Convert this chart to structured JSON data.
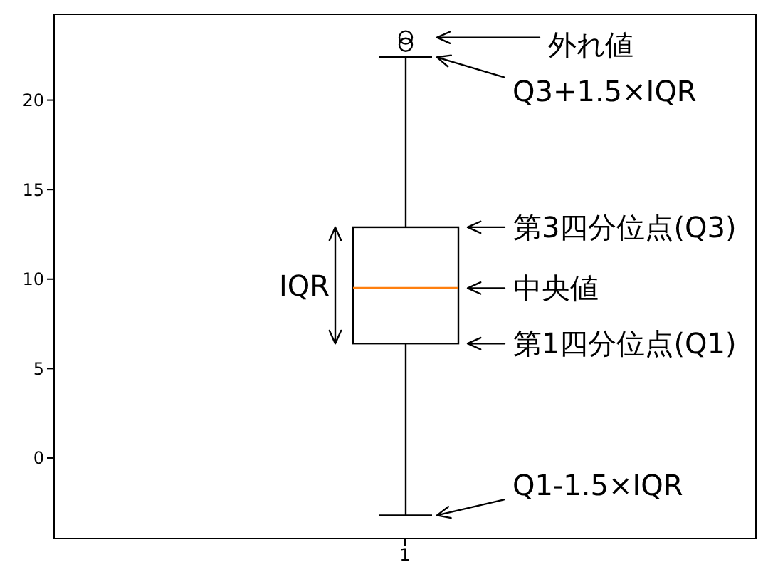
{
  "chart_data": {
    "type": "box",
    "categories": [
      "1"
    ],
    "color": "#000000",
    "boxes": [
      {
        "low": -3.2,
        "q1": 6.4,
        "median": 9.5,
        "q3": 12.9,
        "high": 22.4,
        "outliers": [
          23.1,
          23.5
        ]
      }
    ],
    "ylim": [
      -4.5,
      24.8
    ],
    "yticks": [
      0,
      5,
      10,
      15,
      20
    ],
    "annotations": [
      "外れ値",
      "Q3+1.5×IQR",
      "第3四分位点(Q3)",
      "中央値",
      "第1四分位点(Q1)",
      "IQR",
      "Q1-1.5×IQR"
    ]
  }
}
